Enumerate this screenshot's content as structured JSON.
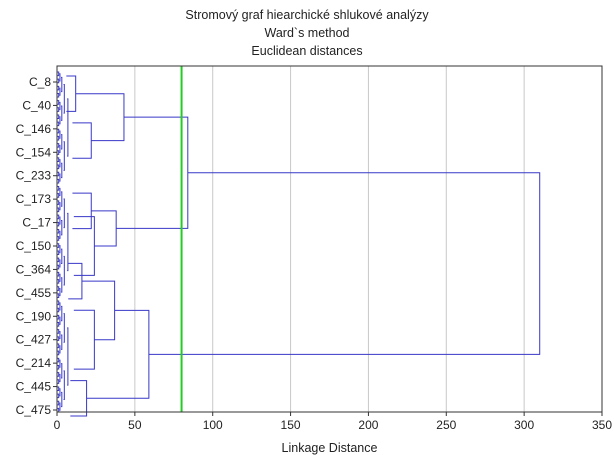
{
  "chart_data": {
    "type": "dendrogram",
    "title": "Stromový graf hiearchické shlukové analýzy",
    "subtitle_lines": [
      "Ward`s method",
      "Euclidean distances"
    ],
    "xlabel": "Linkage Distance",
    "xlim": [
      0,
      350
    ],
    "x_ticks": [
      0,
      50,
      100,
      150,
      200,
      250,
      300,
      350
    ],
    "grid": true,
    "leaf_labels": [
      "C_8",
      "C_40",
      "C_146",
      "C_154",
      "C_233",
      "C_173",
      "C_17",
      "C_150",
      "C_364",
      "C_455",
      "C_190",
      "C_427",
      "C_214",
      "C_445",
      "C_475"
    ],
    "cut_line": {
      "x": 80,
      "color": "#22cc22"
    },
    "line_color": "#3838c8",
    "grid_color": "#c8c8c8",
    "merges": [
      {
        "id": "A1",
        "height": 12,
        "span": [
          "C_8",
          "C_40"
        ]
      },
      {
        "id": "A2",
        "height": 22,
        "span": [
          "C_146",
          "C_154"
        ]
      },
      {
        "id": "A",
        "height": 43,
        "children": [
          "A1",
          "A2"
        ]
      },
      {
        "id": "B1",
        "height": 22,
        "span": [
          "C_173",
          "C_17"
        ]
      },
      {
        "id": "B2",
        "height": 24,
        "span": [
          "C_17",
          "C_364"
        ]
      },
      {
        "id": "B",
        "height": 38,
        "children": [
          "B1",
          "B2"
        ]
      },
      {
        "id": "AB",
        "height": 84,
        "children": [
          "A",
          "B"
        ]
      },
      {
        "id": "C1",
        "height": 16,
        "span": [
          "C_364",
          "C_455"
        ]
      },
      {
        "id": "C2",
        "height": 24,
        "span": [
          "C_190",
          "C_214"
        ]
      },
      {
        "id": "C",
        "height": 37,
        "children": [
          "C1",
          "C2"
        ]
      },
      {
        "id": "D",
        "height": 19,
        "span": [
          "C_445",
          "C_475"
        ]
      },
      {
        "id": "CD",
        "height": 59,
        "children": [
          "C",
          "D"
        ]
      },
      {
        "id": "ROOT",
        "height": 310,
        "children": [
          "AB",
          "CD"
        ]
      }
    ]
  }
}
